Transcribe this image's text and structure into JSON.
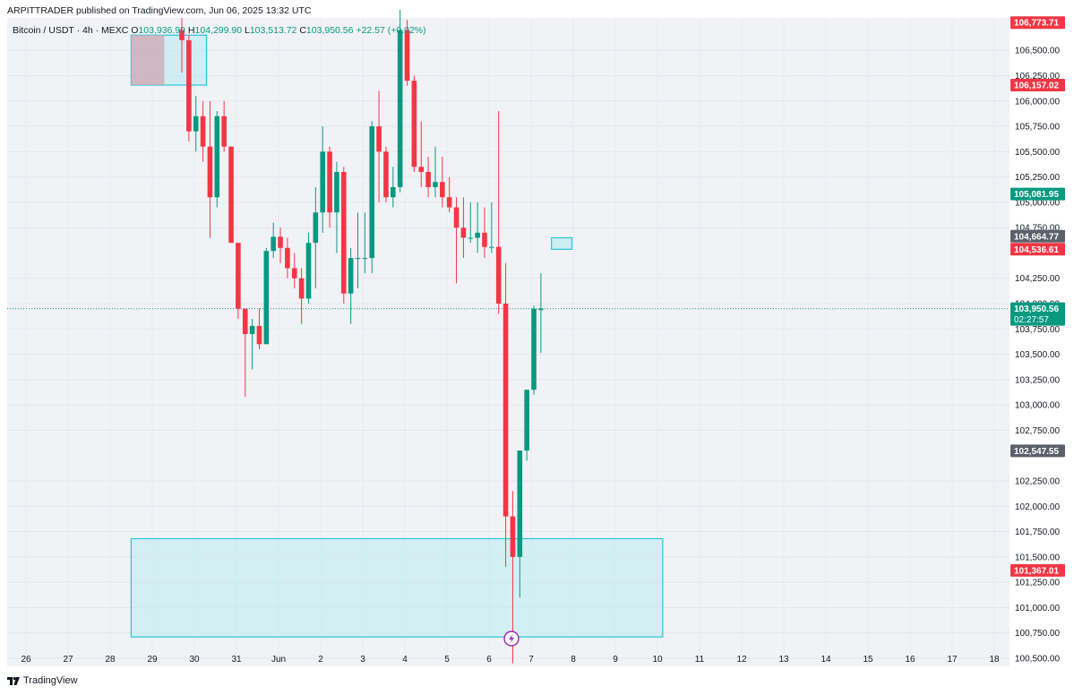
{
  "header": {
    "publisher_line": "ARPITTRADER published on TradingView.com, Jun 06, 2025 13:32 UTC"
  },
  "legend": {
    "symbol": "Bitcoin / USDT · 4h · MEXC",
    "open_label": "O",
    "open": "103,936.99",
    "high_label": "H",
    "high": "104,299.90",
    "low_label": "L",
    "low": "103,513.72",
    "close_label": "C",
    "close": "103,950.56",
    "change": "+22.57 (+0.02%)"
  },
  "footer": {
    "brand": "TradingView"
  },
  "colors": {
    "up": "#089981",
    "down": "#f23645",
    "zone_fill": "#b2ebf2",
    "zone_stroke": "#26c6da",
    "zone_top_left_fill": "#d2a4b0",
    "grey_tag": "#5d606b"
  },
  "chart_data": {
    "type": "candlestick",
    "timeframe": "4h",
    "x_tick_labels": [
      "26",
      "27",
      "28",
      "29",
      "30",
      "31",
      "Jun",
      "2",
      "3",
      "4",
      "5",
      "6",
      "7",
      "8",
      "9",
      "10",
      "11",
      "12",
      "13",
      "14",
      "15",
      "16",
      "17",
      "18"
    ],
    "y_ticks": [
      106500,
      106250,
      106000,
      105750,
      105500,
      105250,
      105000,
      104750,
      104250,
      104000,
      103750,
      103500,
      103250,
      103000,
      102750,
      102250,
      102000,
      101750,
      101500,
      101250,
      101000,
      100750,
      100500
    ],
    "y_tick_labels": [
      "106,500.00",
      "106,250.00",
      "106,000.00",
      "105,750.00",
      "105,500.00",
      "105,250.00",
      "105,000.00",
      "104,750.00",
      "104,250.00",
      "104,000.00",
      "103,750.00",
      "103,500.00",
      "103,250.00",
      "103,000.00",
      "102,750.00",
      "102,250.00",
      "102,000.00",
      "101,750.00",
      "101,500.00",
      "101,250.00",
      "101,000.00",
      "100,750.00",
      "100,500.00"
    ],
    "ylim": [
      100420,
      106820
    ],
    "current_price": 103950.56,
    "price_tags": [
      {
        "value": 106773.71,
        "label": "106,773.71",
        "color": "#f23645"
      },
      {
        "value": 106157.02,
        "label": "106,157.02",
        "color": "#f23645"
      },
      {
        "value": 105081.95,
        "label": "105,081.95",
        "color": "#089981"
      },
      {
        "value": 104664.77,
        "label": "104,664.77",
        "color": "#5d606b"
      },
      {
        "value": 104536.61,
        "label": "104,536.61",
        "color": "#f23645"
      },
      {
        "value": 103950.56,
        "label": "103,950.56",
        "sublabel": "02:27:57",
        "color": "#089981"
      },
      {
        "value": 102547.55,
        "label": "102,547.55",
        "color": "#5d606b"
      },
      {
        "value": 101367.01,
        "label": "101,367.01",
        "color": "#f23645"
      }
    ],
    "zones": [
      {
        "x_from": -7.2,
        "x_to": 3.5,
        "y_from": 106650,
        "y_to": 106157,
        "style": "top"
      },
      {
        "x_from": 52.5,
        "x_to": 55.4,
        "y_from": 104650,
        "y_to": 104536,
        "style": "mid"
      },
      {
        "x_from": -7.2,
        "x_to": 68.3,
        "y_from": 101680,
        "y_to": 100710,
        "style": "bottom"
      }
    ],
    "candles": [
      {
        "o": 106700,
        "h": 106820,
        "l": 106280,
        "c": 106600
      },
      {
        "o": 106600,
        "h": 106650,
        "l": 105600,
        "c": 105700
      },
      {
        "o": 105700,
        "h": 106050,
        "l": 105500,
        "c": 105850
      },
      {
        "o": 105850,
        "h": 106000,
        "l": 105400,
        "c": 105550
      },
      {
        "o": 105550,
        "h": 106000,
        "l": 104650,
        "c": 105050
      },
      {
        "o": 105050,
        "h": 105900,
        "l": 104950,
        "c": 105850
      },
      {
        "o": 105850,
        "h": 106000,
        "l": 105500,
        "c": 105550
      },
      {
        "o": 105550,
        "h": 105550,
        "l": 104600,
        "c": 104600
      },
      {
        "o": 104600,
        "h": 104600,
        "l": 103850,
        "c": 103950
      },
      {
        "o": 103950,
        "h": 103950,
        "l": 103080,
        "c": 103700
      },
      {
        "o": 103700,
        "h": 103850,
        "l": 103350,
        "c": 103780
      },
      {
        "o": 103780,
        "h": 103950,
        "l": 103550,
        "c": 103600
      },
      {
        "o": 103600,
        "h": 104550,
        "l": 103600,
        "c": 104520
      },
      {
        "o": 104520,
        "h": 104800,
        "l": 104450,
        "c": 104660
      },
      {
        "o": 104660,
        "h": 104750,
        "l": 104400,
        "c": 104550
      },
      {
        "o": 104550,
        "h": 104650,
        "l": 104250,
        "c": 104350
      },
      {
        "o": 104350,
        "h": 104500,
        "l": 104150,
        "c": 104250
      },
      {
        "o": 104250,
        "h": 104350,
        "l": 103800,
        "c": 104050
      },
      {
        "o": 104050,
        "h": 104700,
        "l": 104000,
        "c": 104600
      },
      {
        "o": 104600,
        "h": 105150,
        "l": 104150,
        "c": 104900
      },
      {
        "o": 104900,
        "h": 105750,
        "l": 104700,
        "c": 105500
      },
      {
        "o": 105500,
        "h": 105550,
        "l": 104750,
        "c": 104900
      },
      {
        "o": 104900,
        "h": 105400,
        "l": 104500,
        "c": 105300
      },
      {
        "o": 105300,
        "h": 105350,
        "l": 104000,
        "c": 104100
      },
      {
        "o": 104100,
        "h": 104550,
        "l": 103800,
        "c": 104450
      },
      {
        "o": 104450,
        "h": 104900,
        "l": 104150,
        "c": 104450
      },
      {
        "o": 104450,
        "h": 104900,
        "l": 104300,
        "c": 104450
      },
      {
        "o": 104450,
        "h": 105800,
        "l": 104300,
        "c": 105750
      },
      {
        "o": 105750,
        "h": 106100,
        "l": 105000,
        "c": 105500
      },
      {
        "o": 105500,
        "h": 105550,
        "l": 105000,
        "c": 105050
      },
      {
        "o": 105050,
        "h": 105350,
        "l": 104950,
        "c": 105150
      },
      {
        "o": 105150,
        "h": 106900,
        "l": 105100,
        "c": 106700
      },
      {
        "o": 106700,
        "h": 106800,
        "l": 106150,
        "c": 106200
      },
      {
        "o": 106200,
        "h": 106250,
        "l": 105300,
        "c": 105350
      },
      {
        "o": 105350,
        "h": 105800,
        "l": 105150,
        "c": 105300
      },
      {
        "o": 105300,
        "h": 105450,
        "l": 105050,
        "c": 105150
      },
      {
        "o": 105150,
        "h": 105550,
        "l": 105050,
        "c": 105200
      },
      {
        "o": 105200,
        "h": 105450,
        "l": 104950,
        "c": 105050
      },
      {
        "o": 105050,
        "h": 105250,
        "l": 104900,
        "c": 104950
      },
      {
        "o": 104950,
        "h": 105050,
        "l": 104200,
        "c": 104750
      },
      {
        "o": 104750,
        "h": 105050,
        "l": 104450,
        "c": 104650
      },
      {
        "o": 104650,
        "h": 105000,
        "l": 104600,
        "c": 104650
      },
      {
        "o": 104650,
        "h": 105000,
        "l": 104500,
        "c": 104700
      },
      {
        "o": 104700,
        "h": 104950,
        "l": 104450,
        "c": 104560
      },
      {
        "o": 104560,
        "h": 105000,
        "l": 104500,
        "c": 104560
      },
      {
        "o": 104560,
        "h": 105900,
        "l": 103900,
        "c": 104000
      },
      {
        "o": 104000,
        "h": 104400,
        "l": 101400,
        "c": 101900
      },
      {
        "o": 101900,
        "h": 102150,
        "l": 100450,
        "c": 101500
      },
      {
        "o": 101500,
        "h": 102550,
        "l": 101100,
        "c": 102550
      },
      {
        "o": 102550,
        "h": 103150,
        "l": 102450,
        "c": 103150
      },
      {
        "o": 103150,
        "h": 103980,
        "l": 103100,
        "c": 103950
      },
      {
        "o": 103937,
        "h": 104300,
        "l": 103514,
        "c": 103951
      }
    ]
  }
}
